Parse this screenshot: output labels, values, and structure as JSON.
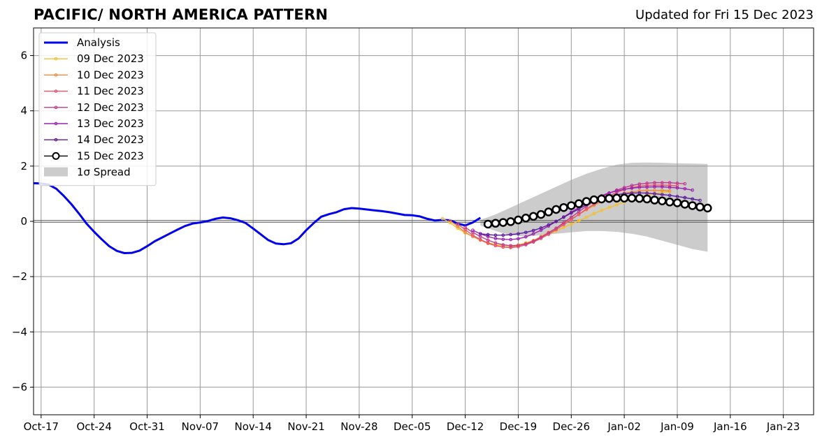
{
  "chart_data": {
    "type": "line",
    "title": "PACIFIC/ NORTH AMERICA PATTERN",
    "subtitle": "Updated for Fri 15 Dec 2023",
    "xlabel": "",
    "ylabel": "",
    "xlim": [
      "2023-10-16",
      "2024-01-27"
    ],
    "ylim": [
      -7,
      7
    ],
    "grid": true,
    "legend_position": "top-left",
    "x_tick_labels": [
      "Oct-17",
      "Oct-24",
      "Oct-31",
      "Nov-07",
      "Nov-14",
      "Nov-21",
      "Nov-28",
      "Dec-05",
      "Dec-12",
      "Dec-19",
      "Dec-26",
      "Jan-02",
      "Jan-09",
      "Jan-16",
      "Jan-23"
    ],
    "x_tick_dates": [
      "2023-10-17",
      "2023-10-24",
      "2023-10-31",
      "2023-11-07",
      "2023-11-14",
      "2023-11-21",
      "2023-11-28",
      "2023-12-05",
      "2023-12-12",
      "2023-12-19",
      "2023-12-26",
      "2024-01-02",
      "2024-01-09",
      "2024-01-16",
      "2024-01-23"
    ],
    "y_ticks": [
      -6,
      -4,
      -2,
      0,
      2,
      4,
      6
    ],
    "y_tick_labels": [
      "−6",
      "−4",
      "−2",
      "0",
      "2",
      "4",
      "6"
    ],
    "spread_label": "1σ Spread",
    "spread": {
      "x": [
        "2023-12-14",
        "2023-12-16",
        "2023-12-18",
        "2023-12-20",
        "2023-12-22",
        "2023-12-24",
        "2023-12-26",
        "2023-12-28",
        "2023-12-30",
        "2024-01-01",
        "2024-01-03",
        "2024-01-05",
        "2024-01-07",
        "2024-01-09",
        "2024-01-11",
        "2024-01-13"
      ],
      "upper": [
        0.05,
        0.25,
        0.5,
        0.75,
        1.0,
        1.25,
        1.5,
        1.72,
        1.9,
        2.05,
        2.12,
        2.13,
        2.12,
        2.1,
        2.09,
        2.08
      ],
      "lower": [
        -0.15,
        -0.35,
        -0.5,
        -0.55,
        -0.5,
        -0.45,
        -0.4,
        -0.35,
        -0.35,
        -0.38,
        -0.45,
        -0.55,
        -0.7,
        -0.85,
        -1.0,
        -1.1
      ]
    },
    "series": [
      {
        "name": "Analysis",
        "color": "#0000ee",
        "marker": "none",
        "x": [
          "2023-10-16",
          "2023-10-17",
          "2023-10-18",
          "2023-10-19",
          "2023-10-20",
          "2023-10-21",
          "2023-10-22",
          "2023-10-23",
          "2023-10-24",
          "2023-10-25",
          "2023-10-26",
          "2023-10-27",
          "2023-10-28",
          "2023-10-29",
          "2023-10-30",
          "2023-10-31",
          "2023-11-01",
          "2023-11-02",
          "2023-11-03",
          "2023-11-04",
          "2023-11-05",
          "2023-11-06",
          "2023-11-07",
          "2023-11-08",
          "2023-11-09",
          "2023-11-10",
          "2023-11-11",
          "2023-11-12",
          "2023-11-13",
          "2023-11-14",
          "2023-11-15",
          "2023-11-16",
          "2023-11-17",
          "2023-11-18",
          "2023-11-19",
          "2023-11-20",
          "2023-11-21",
          "2023-11-22",
          "2023-11-23",
          "2023-11-24",
          "2023-11-25",
          "2023-11-26",
          "2023-11-27",
          "2023-11-28",
          "2023-11-29",
          "2023-11-30",
          "2023-12-01",
          "2023-12-02",
          "2023-12-03",
          "2023-12-04",
          "2023-12-05",
          "2023-12-06",
          "2023-12-07",
          "2023-12-08",
          "2023-12-09",
          "2023-12-10",
          "2023-12-11",
          "2023-12-12",
          "2023-12-13",
          "2023-12-14"
        ],
        "y": [
          1.38,
          1.37,
          1.33,
          1.18,
          0.92,
          0.62,
          0.28,
          -0.08,
          -0.38,
          -0.65,
          -0.9,
          -1.07,
          -1.15,
          -1.14,
          -1.06,
          -0.9,
          -0.72,
          -0.58,
          -0.44,
          -0.3,
          -0.17,
          -0.08,
          -0.04,
          0.01,
          0.09,
          0.14,
          0.11,
          0.04,
          -0.06,
          -0.26,
          -0.47,
          -0.68,
          -0.8,
          -0.83,
          -0.79,
          -0.62,
          -0.32,
          -0.06,
          0.17,
          0.26,
          0.33,
          0.44,
          0.48,
          0.46,
          0.43,
          0.4,
          0.37,
          0.33,
          0.28,
          0.23,
          0.22,
          0.18,
          0.09,
          0.03,
          0.05,
          0.04,
          -0.08,
          -0.15,
          -0.04,
          0.13
        ]
      },
      {
        "name": "09 Dec 2023",
        "color": "#f5c031",
        "marker": "small",
        "x": [
          "2023-12-09",
          "2023-12-10",
          "2023-12-11",
          "2023-12-12",
          "2023-12-13",
          "2023-12-14",
          "2023-12-15",
          "2023-12-16",
          "2023-12-17",
          "2023-12-18",
          "2023-12-19",
          "2023-12-20",
          "2023-12-21",
          "2023-12-22",
          "2023-12-23",
          "2023-12-24",
          "2023-12-25",
          "2023-12-26",
          "2023-12-27",
          "2023-12-28",
          "2023-12-29",
          "2023-12-30",
          "2023-12-31",
          "2024-01-01",
          "2024-01-02",
          "2024-01-03",
          "2024-01-04",
          "2024-01-05",
          "2024-01-06",
          "2024-01-07",
          "2024-01-08"
        ],
        "y": [
          0.1,
          -0.05,
          -0.25,
          -0.42,
          -0.55,
          -0.67,
          -0.77,
          -0.85,
          -0.88,
          -0.88,
          -0.85,
          -0.78,
          -0.69,
          -0.58,
          -0.47,
          -0.35,
          -0.22,
          -0.1,
          0.02,
          0.15,
          0.28,
          0.4,
          0.5,
          0.6,
          0.7,
          0.8,
          0.88,
          0.95,
          1.0,
          1.05,
          1.08
        ]
      },
      {
        "name": "10 Dec 2023",
        "color": "#f08a3c",
        "marker": "small",
        "x": [
          "2023-12-10",
          "2023-12-11",
          "2023-12-12",
          "2023-12-13",
          "2023-12-14",
          "2023-12-15",
          "2023-12-16",
          "2023-12-17",
          "2023-12-18",
          "2023-12-19",
          "2023-12-20",
          "2023-12-21",
          "2023-12-22",
          "2023-12-23",
          "2023-12-24",
          "2023-12-25",
          "2023-12-26",
          "2023-12-27",
          "2023-12-28",
          "2023-12-29",
          "2023-12-30",
          "2023-12-31",
          "2024-01-01",
          "2024-01-02",
          "2024-01-03",
          "2024-01-04",
          "2024-01-05",
          "2024-01-06",
          "2024-01-07",
          "2024-01-08"
        ],
        "y": [
          0.02,
          -0.18,
          -0.4,
          -0.55,
          -0.68,
          -0.8,
          -0.88,
          -0.93,
          -0.93,
          -0.88,
          -0.8,
          -0.7,
          -0.55,
          -0.4,
          -0.25,
          -0.08,
          0.08,
          0.25,
          0.42,
          0.58,
          0.72,
          0.85,
          0.95,
          1.02,
          1.06,
          1.1,
          1.12,
          1.12,
          1.12,
          1.1
        ]
      },
      {
        "name": "11 Dec 2023",
        "color": "#e8546a",
        "marker": "small",
        "x": [
          "2023-12-11",
          "2023-12-12",
          "2023-12-13",
          "2023-12-14",
          "2023-12-15",
          "2023-12-16",
          "2023-12-17",
          "2023-12-18",
          "2023-12-19",
          "2023-12-20",
          "2023-12-21",
          "2023-12-22",
          "2023-12-23",
          "2023-12-24",
          "2023-12-25",
          "2023-12-26",
          "2023-12-27",
          "2023-12-28",
          "2023-12-29",
          "2023-12-30",
          "2023-12-31",
          "2024-01-01",
          "2024-01-02",
          "2024-01-03",
          "2024-01-04",
          "2024-01-05",
          "2024-01-06",
          "2024-01-07",
          "2024-01-08",
          "2024-01-09"
        ],
        "y": [
          -0.1,
          -0.3,
          -0.5,
          -0.66,
          -0.78,
          -0.88,
          -0.93,
          -0.95,
          -0.92,
          -0.85,
          -0.75,
          -0.62,
          -0.47,
          -0.3,
          -0.12,
          0.06,
          0.25,
          0.45,
          0.62,
          0.78,
          0.92,
          1.05,
          1.15,
          1.22,
          1.27,
          1.3,
          1.31,
          1.31,
          1.3,
          1.28
        ]
      },
      {
        "name": "12 Dec 2023",
        "color": "#c23a8e",
        "marker": "small",
        "x": [
          "2023-12-12",
          "2023-12-13",
          "2023-12-14",
          "2023-12-15",
          "2023-12-16",
          "2023-12-17",
          "2023-12-18",
          "2023-12-19",
          "2023-12-20",
          "2023-12-21",
          "2023-12-22",
          "2023-12-23",
          "2023-12-24",
          "2023-12-25",
          "2023-12-26",
          "2023-12-27",
          "2023-12-28",
          "2023-12-29",
          "2023-12-30",
          "2023-12-31",
          "2024-01-01",
          "2024-01-02",
          "2024-01-03",
          "2024-01-04",
          "2024-01-05",
          "2024-01-06",
          "2024-01-07",
          "2024-01-08",
          "2024-01-09",
          "2024-01-10"
        ],
        "y": [
          -0.22,
          -0.4,
          -0.55,
          -0.68,
          -0.78,
          -0.85,
          -0.88,
          -0.87,
          -0.82,
          -0.72,
          -0.58,
          -0.42,
          -0.25,
          -0.05,
          0.15,
          0.35,
          0.55,
          0.72,
          0.88,
          1.02,
          1.13,
          1.22,
          1.3,
          1.35,
          1.38,
          1.4,
          1.4,
          1.4,
          1.38,
          1.36
        ]
      },
      {
        "name": "13 Dec 2023",
        "color": "#9b22b0",
        "marker": "small",
        "x": [
          "2023-12-13",
          "2023-12-14",
          "2023-12-15",
          "2023-12-16",
          "2023-12-17",
          "2023-12-18",
          "2023-12-19",
          "2023-12-20",
          "2023-12-21",
          "2023-12-22",
          "2023-12-23",
          "2023-12-24",
          "2023-12-25",
          "2023-12-26",
          "2023-12-27",
          "2023-12-28",
          "2023-12-29",
          "2023-12-30",
          "2023-12-31",
          "2024-01-01",
          "2024-01-02",
          "2024-01-03",
          "2024-01-04",
          "2024-01-05",
          "2024-01-06",
          "2024-01-07",
          "2024-01-08",
          "2024-01-09",
          "2024-01-10",
          "2024-01-11"
        ],
        "y": [
          -0.32,
          -0.45,
          -0.55,
          -0.62,
          -0.65,
          -0.66,
          -0.63,
          -0.56,
          -0.45,
          -0.32,
          -0.17,
          -0.01,
          0.16,
          0.33,
          0.5,
          0.65,
          0.8,
          0.93,
          1.03,
          1.1,
          1.16,
          1.2,
          1.23,
          1.24,
          1.25,
          1.25,
          1.23,
          1.21,
          1.18,
          1.13
        ]
      },
      {
        "name": "14 Dec 2023",
        "color": "#5c1a9e",
        "marker": "small",
        "x": [
          "2023-12-14",
          "2023-12-15",
          "2023-12-16",
          "2023-12-17",
          "2023-12-18",
          "2023-12-19",
          "2023-12-20",
          "2023-12-21",
          "2023-12-22",
          "2023-12-23",
          "2023-12-24",
          "2023-12-25",
          "2023-12-26",
          "2023-12-27",
          "2023-12-28",
          "2023-12-29",
          "2023-12-30",
          "2023-12-31",
          "2024-01-01",
          "2024-01-02",
          "2024-01-03",
          "2024-01-04",
          "2024-01-05",
          "2024-01-06",
          "2024-01-07",
          "2024-01-08",
          "2024-01-09",
          "2024-01-10",
          "2024-01-11",
          "2024-01-12"
        ],
        "y": [
          -0.45,
          -0.48,
          -0.5,
          -0.5,
          -0.48,
          -0.45,
          -0.4,
          -0.33,
          -0.24,
          -0.13,
          0.0,
          0.15,
          0.3,
          0.45,
          0.6,
          0.72,
          0.82,
          0.9,
          0.96,
          1.0,
          1.02,
          1.03,
          1.02,
          1.0,
          0.97,
          0.94,
          0.9,
          0.86,
          0.81,
          0.76
        ]
      },
      {
        "name": "15 Dec 2023",
        "color": "#000000",
        "marker": "circle",
        "x": [
          "2023-12-15",
          "2023-12-16",
          "2023-12-17",
          "2023-12-18",
          "2023-12-19",
          "2023-12-20",
          "2023-12-21",
          "2023-12-22",
          "2023-12-23",
          "2023-12-24",
          "2023-12-25",
          "2023-12-26",
          "2023-12-27",
          "2023-12-28",
          "2023-12-29",
          "2023-12-30",
          "2023-12-31",
          "2024-01-01",
          "2024-01-02",
          "2024-01-03",
          "2024-01-04",
          "2024-01-05",
          "2024-01-06",
          "2024-01-07",
          "2024-01-08",
          "2024-01-09",
          "2024-01-10",
          "2024-01-11",
          "2024-01-12",
          "2024-01-13"
        ],
        "y": [
          -0.1,
          -0.07,
          -0.04,
          -0.01,
          0.05,
          0.12,
          0.18,
          0.25,
          0.34,
          0.43,
          0.5,
          0.57,
          0.64,
          0.72,
          0.78,
          0.81,
          0.83,
          0.84,
          0.84,
          0.84,
          0.83,
          0.81,
          0.77,
          0.74,
          0.7,
          0.67,
          0.62,
          0.57,
          0.52,
          0.48
        ]
      }
    ]
  }
}
